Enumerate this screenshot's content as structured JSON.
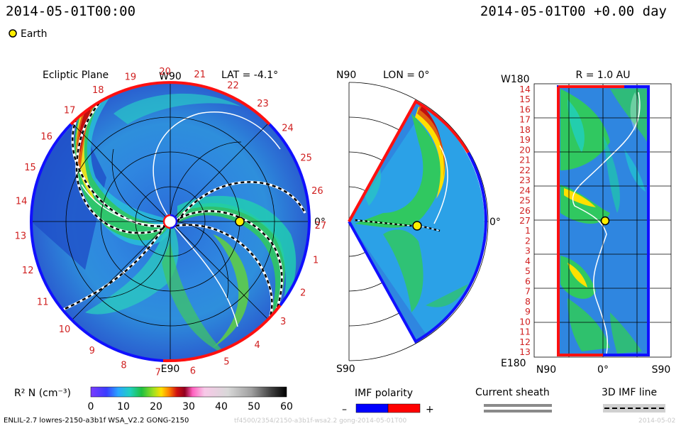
{
  "header": {
    "datetime_left": "2014-05-01T00:00",
    "datetime_right": "2014-05-01T00 +0.00 day",
    "legend_earth": "Earth"
  },
  "ecliptic": {
    "title": "Ecliptic Plane",
    "top_label": "W90",
    "bottom_label": "E90",
    "right_label": "0°",
    "lat_label": "LAT = -4.1°",
    "ring_numbers": [
      "20",
      "21",
      "22",
      "23",
      "24",
      "25",
      "26",
      "27",
      "1",
      "2",
      "3",
      "4",
      "5",
      "6",
      "7",
      "8",
      "9",
      "10",
      "11",
      "12",
      "13",
      "14",
      "15",
      "16",
      "17",
      "18",
      "19"
    ]
  },
  "meridional": {
    "lon_label": "LON = 0°",
    "top_label": "N90",
    "bottom_label": "S90",
    "right_label": "0°"
  },
  "radial": {
    "title": "R = 1.0 AU",
    "top_left_label": "W180",
    "bottom_left_label": "E180",
    "bottom_labels": [
      "N90",
      "0°",
      "S90"
    ],
    "rows": [
      "14",
      "15",
      "16",
      "17",
      "18",
      "19",
      "20",
      "21",
      "22",
      "23",
      "24",
      "25",
      "26",
      "27",
      "1",
      "2",
      "3",
      "4",
      "5",
      "6",
      "7",
      "8",
      "9",
      "10",
      "11",
      "12",
      "13"
    ]
  },
  "colorbar": {
    "label": "R² N (cm⁻³)",
    "ticks": [
      "0",
      "10",
      "20",
      "30",
      "40",
      "50",
      "60"
    ]
  },
  "legends": {
    "imf_polarity": "IMF polarity",
    "imf_minus": "–",
    "imf_plus": "+",
    "current_sheath": "Current sheath",
    "imf_line": "3D IMF line"
  },
  "footer": {
    "model_info": "ENLIL-2.7 lowres-2150-a3b1f WSA_V2.2 GONG-2150",
    "faint_run": "tf4500/2354/2150-a3b1f-wsa2.2 gong-2014-05-01T00",
    "faint_date": "2014-05-02"
  },
  "colors": {
    "imf_negative": "#0000ff",
    "imf_positive": "#ff0000",
    "earth": "#ffee00"
  }
}
